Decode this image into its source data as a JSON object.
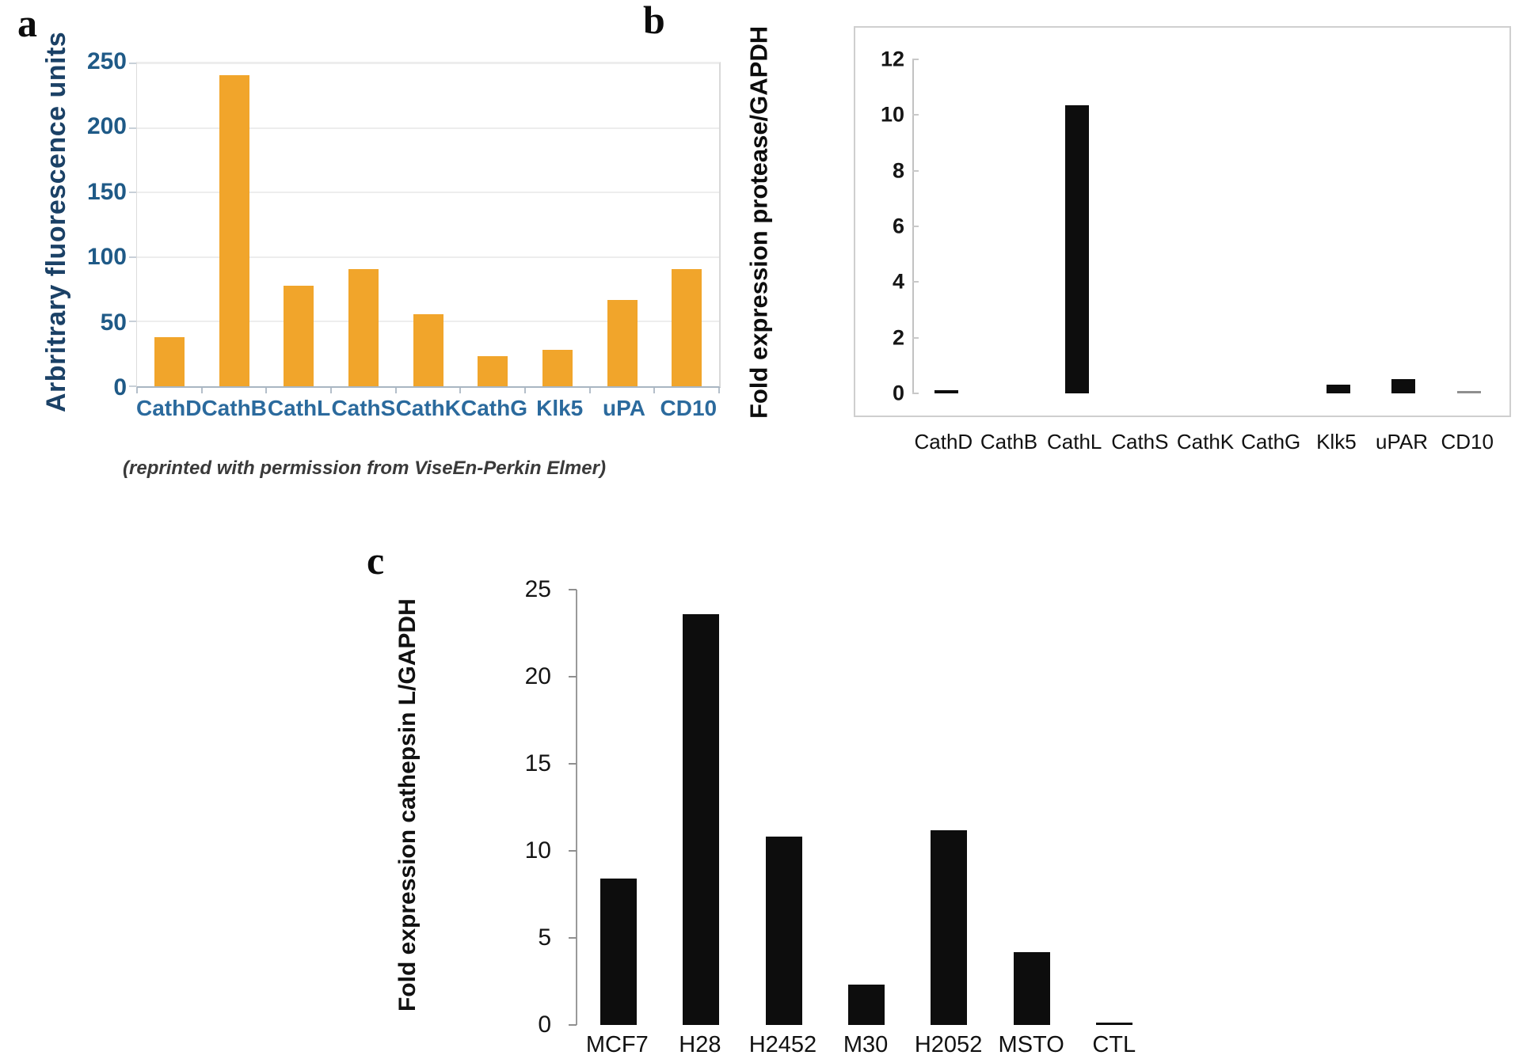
{
  "panels": [
    {
      "label": "a",
      "caption": "(reprinted with permission from ViseEn-Perkin Elmer)"
    },
    {
      "label": "b"
    },
    {
      "label": "c"
    }
  ],
  "chart_data": [
    {
      "type": "bar",
      "panel": "a",
      "title": "",
      "xlabel": "",
      "ylabel": "Arbritrary fluorescence units",
      "categories": [
        "CathD",
        "CathB",
        "CathL",
        "CathS",
        "CathK",
        "CathG",
        "Klk5",
        "uPA",
        "CD10"
      ],
      "values": [
        38,
        241,
        78,
        91,
        56,
        23,
        28,
        67,
        91
      ],
      "ylim": [
        0,
        250
      ],
      "yticks": [
        0,
        50,
        100,
        150,
        200,
        250
      ],
      "grid": true,
      "legend": "none",
      "bar_color": "#F1A52B",
      "annotation": "(reprinted with permission from ViseEn-Perkin Elmer)"
    },
    {
      "type": "bar",
      "panel": "b",
      "title": "",
      "xlabel": "",
      "ylabel": "Fold expression protease/GAPDH",
      "categories": [
        "CathD",
        "CathB",
        "CathL",
        "CathS",
        "CathK",
        "CathG",
        "Klk5",
        "uPAR",
        "CD10"
      ],
      "values": [
        0.1,
        0,
        10.35,
        0,
        0,
        0,
        0.3,
        0.5,
        0.05
      ],
      "ylim": [
        0,
        12
      ],
      "yticks": [
        0,
        2,
        4,
        6,
        8,
        10,
        12
      ],
      "grid": false,
      "legend": "none",
      "bar_color": "#0d0d0d",
      "bar_color_overrides": {
        "CD10": "#8f8f8f"
      }
    },
    {
      "type": "bar",
      "panel": "c",
      "title": "",
      "xlabel": "",
      "ylabel": "Fold expression cathepsin L/GAPDH",
      "categories": [
        "MCF7",
        "H28",
        "H2452",
        "M30",
        "H2052",
        "MSTO",
        "CTL"
      ],
      "values": [
        8.4,
        23.6,
        10.8,
        2.3,
        11.2,
        4.2,
        0.15
      ],
      "ylim": [
        0,
        25
      ],
      "yticks": [
        0,
        5,
        10,
        15,
        20,
        25
      ],
      "grid": false,
      "legend": "none",
      "bar_color": "#0d0d0d"
    }
  ]
}
